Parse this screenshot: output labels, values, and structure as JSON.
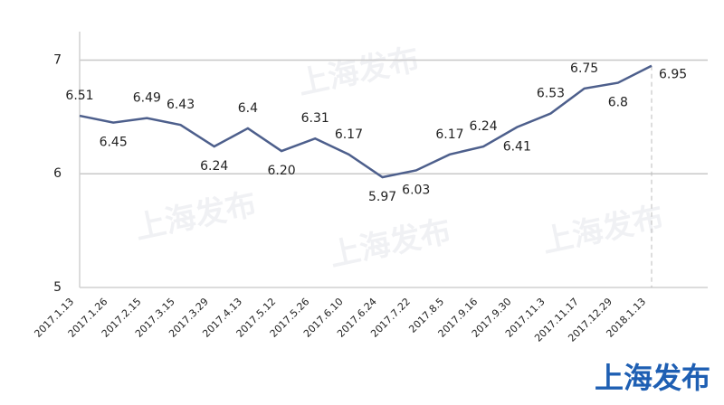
{
  "chart_data": {
    "type": "line",
    "categories": [
      "2017.1.13",
      "2017.1.26",
      "2017.2.15",
      "2017.3.15",
      "2017.3.29",
      "2017.4.13",
      "2017.5.12",
      "2017.5.26",
      "2017.6.10",
      "2017.6.24",
      "2017.7.22",
      "2017.8.5",
      "2017.9.16",
      "2017.9.30",
      "2017.11.3",
      "2017.11.17",
      "2017.12.29",
      "2018.1.13"
    ],
    "values": [
      6.51,
      6.45,
      6.49,
      6.43,
      6.24,
      6.4,
      6.2,
      6.31,
      6.17,
      5.97,
      6.03,
      6.17,
      6.24,
      6.41,
      6.53,
      6.75,
      6.8,
      6.95
    ],
    "value_labels": [
      "6.51",
      "6.45",
      "6.49",
      "6.43",
      "6.24",
      "6.4",
      "6.20",
      "6.31",
      "6.17",
      "5.97",
      "6.03",
      "6.17",
      "6.24",
      "6.41",
      "6.53",
      "6.75",
      "6.8",
      "6.95"
    ],
    "color": "#4d5f8c",
    "ylim": [
      5,
      7.25
    ],
    "yticks": [
      5,
      6,
      7
    ],
    "grid": true,
    "logo": "上海发布"
  }
}
